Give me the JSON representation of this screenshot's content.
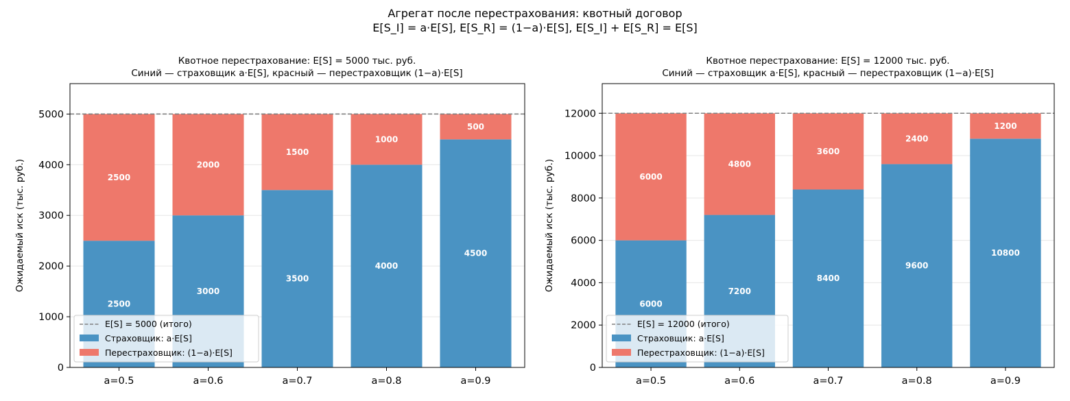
{
  "figure": {
    "suptitle_line1": "Агрегат после перестрахования: квотный договор",
    "suptitle_line2": "E[S_I] = a·E[S],  E[S_R] = (1−a)·E[S],  E[S_I] + E[S_R] = E[S]"
  },
  "colors": {
    "insurer": "#4a93c3",
    "reinsurer": "#ee786b",
    "total_line": "#808080",
    "grid": "#e6e6e6"
  },
  "chart_data": [
    {
      "type": "bar",
      "stacked": true,
      "title_line1": "Квотное перестрахование: E[S] = 5000 тыс. руб.",
      "title_line2": "Синий — страховщик a·E[S], красный — перестраховщик (1−a)·E[S]",
      "xlabel": "",
      "ylabel": "Ожидаемый иск (тыс. руб.)",
      "categories": [
        "a=0.5",
        "a=0.6",
        "a=0.7",
        "a=0.8",
        "a=0.9"
      ],
      "series": [
        {
          "name": "Страховщик: a·E[S]",
          "values": [
            2500,
            3000,
            3500,
            4000,
            4500
          ]
        },
        {
          "name": "Перестраховщик: (1−a)·E[S]",
          "values": [
            2500,
            2000,
            1500,
            1000,
            500
          ]
        }
      ],
      "total_line": {
        "value": 5000,
        "label": "E[S] = 5000 (итого)"
      },
      "yticks": [
        0,
        1000,
        2000,
        3000,
        4000,
        5000
      ],
      "ylim": [
        0,
        5600
      ],
      "grid": "y",
      "legend_position": "lower-left"
    },
    {
      "type": "bar",
      "stacked": true,
      "title_line1": "Квотное перестрахование: E[S] = 12000 тыс. руб.",
      "title_line2": "Синий — страховщик a·E[S], красный — перестраховщик (1−a)·E[S]",
      "xlabel": "",
      "ylabel": "Ожидаемый иск (тыс. руб.)",
      "categories": [
        "a=0.5",
        "a=0.6",
        "a=0.7",
        "a=0.8",
        "a=0.9"
      ],
      "series": [
        {
          "name": "Страховщик: a·E[S]",
          "values": [
            6000,
            7200,
            8400,
            9600,
            10800
          ]
        },
        {
          "name": "Перестраховщик: (1−a)·E[S]",
          "values": [
            6000,
            4800,
            3600,
            2400,
            1200
          ]
        }
      ],
      "total_line": {
        "value": 12000,
        "label": "E[S] = 12000 (итого)"
      },
      "yticks": [
        0,
        2000,
        4000,
        6000,
        8000,
        10000,
        12000
      ],
      "ylim": [
        0,
        13400
      ],
      "grid": "y",
      "legend_position": "lower-left"
    }
  ]
}
